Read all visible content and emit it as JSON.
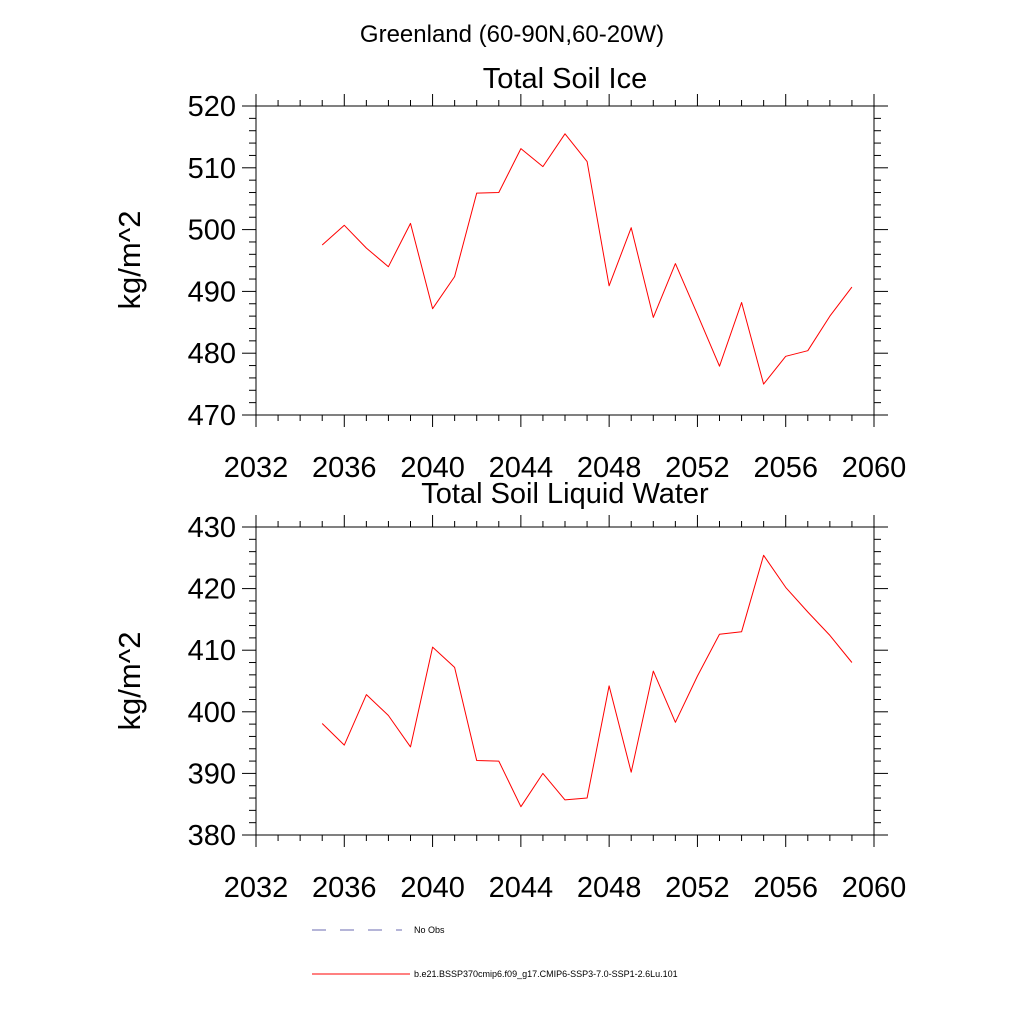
{
  "figure": {
    "title": "Greenland (60-90N,60-20W)"
  },
  "legend": {
    "items": [
      {
        "label": "No Obs",
        "style": "dashed",
        "color": "#6b6bb0"
      },
      {
        "label": "b.e21.BSSP370cmip6.f09_g17.CMIP6-SSP3-7.0-SSP1-2.6Lu.101",
        "style": "solid",
        "color": "#ff0000"
      }
    ]
  },
  "chart_data": [
    {
      "type": "line",
      "title": "Total Soil Ice",
      "xlabel": "",
      "ylabel": "kg/m^2",
      "xlim": [
        2032,
        2060
      ],
      "ylim": [
        470,
        520
      ],
      "xticks": [
        2032,
        2036,
        2040,
        2044,
        2048,
        2052,
        2056,
        2060
      ],
      "yticks": [
        470,
        480,
        490,
        500,
        510,
        520
      ],
      "grid": false,
      "series": [
        {
          "color": "#ff0000",
          "x": [
            2035,
            2036,
            2037,
            2038,
            2039,
            2040,
            2041,
            2042,
            2043,
            2044,
            2045,
            2046,
            2047,
            2048,
            2049,
            2050,
            2051,
            2052,
            2053,
            2054,
            2055,
            2056,
            2057,
            2058,
            2059
          ],
          "values": [
            497.5,
            500.7,
            497.0,
            494.0,
            501.0,
            487.2,
            492.4,
            505.9,
            506.0,
            513.1,
            510.2,
            515.5,
            511.0,
            490.9,
            500.3,
            485.8,
            494.5,
            486.3,
            477.9,
            488.2,
            475.0,
            479.5,
            480.4,
            486.0,
            490.7
          ]
        }
      ]
    },
    {
      "type": "line",
      "title": "Total Soil Liquid Water",
      "xlabel": "",
      "ylabel": "kg/m^2",
      "xlim": [
        2032,
        2060
      ],
      "ylim": [
        380,
        430
      ],
      "xticks": [
        2032,
        2036,
        2040,
        2044,
        2048,
        2052,
        2056,
        2060
      ],
      "yticks": [
        380,
        390,
        400,
        410,
        420,
        430
      ],
      "grid": false,
      "series": [
        {
          "color": "#ff0000",
          "x": [
            2035,
            2036,
            2037,
            2038,
            2039,
            2040,
            2041,
            2042,
            2043,
            2044,
            2045,
            2046,
            2047,
            2048,
            2049,
            2050,
            2051,
            2052,
            2053,
            2054,
            2055,
            2056,
            2057,
            2058,
            2059
          ],
          "values": [
            398.1,
            394.6,
            402.8,
            399.4,
            394.3,
            410.5,
            407.2,
            392.1,
            392.0,
            384.6,
            390.0,
            385.7,
            386.0,
            404.2,
            390.2,
            406.6,
            398.3,
            405.8,
            412.6,
            413.0,
            425.4,
            420.2,
            416.2,
            412.4,
            408.0
          ]
        }
      ]
    }
  ]
}
